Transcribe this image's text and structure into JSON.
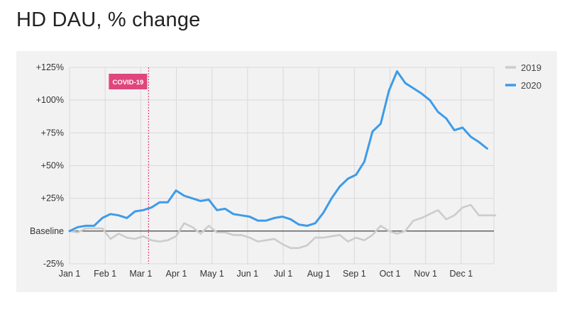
{
  "title": "HD DAU, % change",
  "chart_data": {
    "type": "line",
    "title": "HD DAU, % change",
    "xlabel": "",
    "ylabel": "",
    "x_ticks": [
      "Jan 1",
      "Feb 1",
      "Mar 1",
      "Apr 1",
      "May 1",
      "Jun 1",
      "Jul 1",
      "Aug 1",
      "Sep 1",
      "Oct 1",
      "Nov 1",
      "Dec 1"
    ],
    "y_ticks": [
      {
        "value": 125,
        "label": "+125%"
      },
      {
        "value": 100,
        "label": "+100%"
      },
      {
        "value": 75,
        "label": "+75%"
      },
      {
        "value": 50,
        "label": "+50%"
      },
      {
        "value": 25,
        "label": "+25%"
      },
      {
        "value": 0,
        "label": "Baseline"
      },
      {
        "value": -25,
        "label": "-25%"
      }
    ],
    "ylim": [
      -25,
      125
    ],
    "xlim": [
      0,
      12
    ],
    "grid": true,
    "legend_position": "top-right",
    "annotation": {
      "label": "COVID-19",
      "x": 2.22,
      "color": "#e0457b"
    },
    "series": [
      {
        "name": "2019",
        "color": "#cccccc",
        "x": [
          0,
          0.23,
          0.46,
          0.69,
          0.92,
          1.15,
          1.38,
          1.61,
          1.84,
          2.07,
          2.3,
          2.53,
          2.76,
          2.99,
          3.22,
          3.45,
          3.68,
          3.91,
          4.14,
          4.37,
          4.6,
          4.83,
          5.06,
          5.29,
          5.52,
          5.75,
          5.98,
          6.21,
          6.44,
          6.67,
          6.9,
          7.13,
          7.36,
          7.59,
          7.82,
          8.05,
          8.28,
          8.51,
          8.74,
          8.97,
          9.2,
          9.43,
          9.66,
          9.89,
          10.12,
          10.35,
          10.58,
          10.81,
          11.04,
          11.27,
          11.5,
          11.73,
          11.96
        ],
        "values": [
          0,
          -1,
          2,
          2,
          2,
          -6,
          -2,
          -5,
          -6,
          -4,
          -7,
          -8,
          -7,
          -4,
          6,
          3,
          -2,
          4,
          -1,
          -1,
          -3,
          -3,
          -5,
          -8,
          -7,
          -6,
          -10,
          -13,
          -13,
          -11,
          -5,
          -5,
          -4,
          -3,
          -8,
          -5,
          -7,
          -3,
          4,
          0,
          -2,
          0,
          8,
          10,
          13,
          16,
          9,
          12,
          18,
          20,
          12,
          12,
          12
        ]
      },
      {
        "name": "2020",
        "color": "#3d9be9",
        "x": [
          0,
          0.23,
          0.46,
          0.69,
          0.92,
          1.15,
          1.38,
          1.61,
          1.84,
          2.07,
          2.3,
          2.53,
          2.76,
          2.99,
          3.22,
          3.45,
          3.68,
          3.91,
          4.14,
          4.37,
          4.6,
          4.83,
          5.06,
          5.29,
          5.52,
          5.75,
          5.98,
          6.21,
          6.44,
          6.67,
          6.9,
          7.13,
          7.36,
          7.59,
          7.82,
          8.05,
          8.28,
          8.51,
          8.74,
          8.97,
          9.2,
          9.43,
          9.66,
          9.89,
          10.12,
          10.35,
          10.58,
          10.81,
          11.04,
          11.27,
          11.5,
          11.73
        ],
        "values": [
          0,
          3,
          4,
          4,
          10,
          13,
          12,
          10,
          15,
          16,
          18,
          22,
          22,
          31,
          27,
          25,
          23,
          24,
          16,
          17,
          13,
          12,
          11,
          8,
          8,
          10,
          11,
          9,
          5,
          4,
          6,
          14,
          25,
          34,
          40,
          43,
          53,
          76,
          82,
          107,
          122,
          113,
          109,
          105,
          100,
          91,
          86,
          77,
          79,
          72,
          68,
          63
        ]
      }
    ]
  }
}
